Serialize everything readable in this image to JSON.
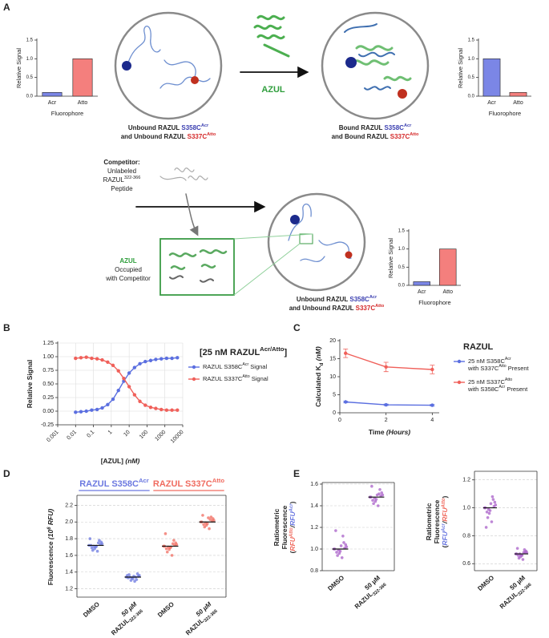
{
  "figure": {
    "panel_labels": [
      "A",
      "B",
      "C",
      "D",
      "E"
    ],
    "a_captions": [
      [
        [
          {
            "t": "Unbound RAZUL "
          },
          {
            "t": "S358C",
            "c": "#3b3fb0"
          },
          {
            "t": "Acr",
            "s": "sup",
            "c": "#3b3fb0"
          }
        ],
        [
          {
            "t": "and Unbound RAZUL "
          },
          {
            "t": "S337C",
            "c": "#d42a2a"
          },
          {
            "t": "Atto",
            "s": "sup",
            "c": "#d42a2a"
          }
        ]
      ],
      [
        [
          {
            "t": "Bound RAZUL "
          },
          {
            "t": "S358C",
            "c": "#3b3fb0"
          },
          {
            "t": "Acr",
            "s": "sup",
            "c": "#3b3fb0"
          }
        ],
        [
          {
            "t": "and Bound RAZUL "
          },
          {
            "t": "S337C",
            "c": "#d42a2a"
          },
          {
            "t": "Atto",
            "s": "sup",
            "c": "#d42a2a"
          }
        ]
      ],
      [
        [
          {
            "t": "Unbound RAZUL "
          },
          {
            "t": "S358C",
            "c": "#3b3fb0"
          },
          {
            "t": "Acr",
            "s": "sup",
            "c": "#3b3fb0"
          }
        ],
        [
          {
            "t": "and Unbound RAZUL "
          },
          {
            "t": "S337C",
            "c": "#d42a2a"
          },
          {
            "t": "Atto",
            "s": "sup",
            "c": "#d42a2a"
          }
        ]
      ]
    ],
    "azul_label": [
      {
        "t": "AZUL",
        "c": "#2f9e3c"
      }
    ],
    "competitor": [
      [
        {
          "t": "Competitor:",
          "b": true
        }
      ],
      [
        {
          "t": "Unlabeled"
        }
      ],
      [
        {
          "t": "RAZUL"
        },
        {
          "t": "322-366",
          "s": "sup"
        }
      ],
      [
        {
          "t": "Peptide"
        }
      ]
    ],
    "occupied": [
      [
        {
          "t": "AZUL",
          "c": "#2f9e3c",
          "b": true
        }
      ],
      [
        {
          "t": "Occupied"
        }
      ],
      [
        {
          "t": "with Competitor"
        }
      ]
    ]
  },
  "chart_data": [
    {
      "type": "bar",
      "ylabel": [
        {
          "t": "Relative Signal"
        }
      ],
      "xlabel": [
        {
          "t": "Fluorophore"
        }
      ],
      "categories": [
        "Acr",
        "Atto"
      ],
      "values": [
        0.1,
        1.0
      ],
      "colors": [
        "#7b86e6",
        "#f47f7d"
      ],
      "ylim": [
        0,
        1.5
      ],
      "yticks": [
        {
          "value": 0,
          "label": "0.0"
        },
        0.5,
        {
          "value": 1,
          "label": "1.0"
        },
        1.5
      ]
    },
    {
      "type": "bar",
      "ylabel": [
        {
          "t": "Relative Signal"
        }
      ],
      "xlabel": [
        {
          "t": "Fluorophore"
        }
      ],
      "categories": [
        "Acr",
        "Atto"
      ],
      "values": [
        1.0,
        0.1
      ],
      "colors": [
        "#7b86e6",
        "#f47f7d"
      ],
      "ylim": [
        0,
        1.5
      ],
      "yticks": [
        {
          "value": 0,
          "label": "0.0"
        },
        0.5,
        {
          "value": 1,
          "label": "1.0"
        },
        1.5
      ]
    },
    {
      "type": "bar",
      "ylabel": [
        {
          "t": "Relative Signal"
        }
      ],
      "xlabel": [
        {
          "t": "Fluorophore"
        }
      ],
      "categories": [
        "Acr",
        "Atto"
      ],
      "values": [
        0.1,
        1.0
      ],
      "colors": [
        "#7b86e6",
        "#f47f7d"
      ],
      "ylim": [
        0,
        1.5
      ],
      "yticks": [
        {
          "value": 0,
          "label": "0.0"
        },
        0.5,
        {
          "value": 1,
          "label": "1.0"
        },
        1.5
      ]
    },
    {
      "type": "line",
      "xscale": "log",
      "grid": "xy",
      "legend_title": [
        {
          "t": "[25 nM RAZUL"
        },
        {
          "t": "Acr/Atto",
          "s": "sup"
        },
        {
          "t": "]"
        }
      ],
      "ylabel": [
        {
          "t": "Relative Signal"
        }
      ],
      "xlabel": [
        {
          "t": "[AZUL] "
        },
        {
          "t": "(nM)",
          "i": true
        }
      ],
      "x": [
        0.01,
        0.02,
        0.04,
        0.08,
        0.16,
        0.31,
        0.63,
        1.25,
        2.5,
        5,
        10,
        20,
        40,
        80,
        160,
        310,
        630,
        1250,
        2500,
        5000
      ],
      "series": [
        {
          "name": [
            {
              "t": "RAZUL S358C"
            },
            {
              "t": "Acr",
              "s": "sup"
            },
            {
              "t": " Signal"
            }
          ],
          "color": "#5b6fe0",
          "values": [
            -0.02,
            -0.01,
            0.0,
            0.02,
            0.03,
            0.06,
            0.12,
            0.22,
            0.38,
            0.55,
            0.7,
            0.8,
            0.87,
            0.91,
            0.93,
            0.95,
            0.96,
            0.97,
            0.97,
            0.98
          ]
        },
        {
          "name": [
            {
              "t": "RAZUL S337C"
            },
            {
              "t": "Atto",
              "s": "sup"
            },
            {
              "t": " Signal"
            }
          ],
          "color": "#f0605a",
          "values": [
            0.97,
            0.98,
            0.99,
            0.97,
            0.96,
            0.94,
            0.9,
            0.84,
            0.74,
            0.6,
            0.45,
            0.3,
            0.18,
            0.11,
            0.07,
            0.05,
            0.03,
            0.02,
            0.02,
            0.02
          ]
        }
      ],
      "xlim": [
        0.001,
        10000
      ],
      "xticks": [
        0.001,
        0.01,
        0.1,
        1,
        10,
        100,
        1000,
        10000
      ],
      "ylim": [
        -0.25,
        1.25
      ],
      "yticks": [
        -0.25,
        {
          "value": 0,
          "label": "0.00"
        },
        0.25,
        {
          "value": 0.5,
          "label": "0.50"
        },
        0.75,
        {
          "value": 1,
          "label": "1.00"
        },
        1.25
      ]
    },
    {
      "type": "line",
      "legend_title": [
        {
          "t": "RAZUL"
        }
      ],
      "ylabel": [
        {
          "t": "Calculated K"
        },
        {
          "t": "d",
          "s": "sub"
        },
        {
          "t": " (nM)",
          "i": true
        }
      ],
      "xlabel": [
        {
          "t": "Time "
        },
        {
          "t": "(Hours)",
          "i": true
        }
      ],
      "x": [
        0.25,
        2,
        4
      ],
      "series": [
        {
          "name": [
            [
              {
                "t": "25 nM S358C"
              },
              {
                "t": "Acr",
                "s": "sup"
              }
            ],
            [
              {
                "t": "with S337C"
              },
              {
                "t": "Atto",
                "s": "sup"
              },
              {
                "t": " Present"
              }
            ]
          ],
          "color": "#5b6fe0",
          "values": [
            3.0,
            2.2,
            2.1
          ],
          "errors": [
            0.2,
            0.2,
            0.2
          ]
        },
        {
          "name": [
            [
              {
                "t": "25 nM S337C"
              },
              {
                "t": "Atto",
                "s": "sup"
              }
            ],
            [
              {
                "t": "with S358C"
              },
              {
                "t": "Acr",
                "s": "sup"
              },
              {
                "t": " Present"
              }
            ]
          ],
          "color": "#f0605a",
          "values": [
            16.5,
            12.7,
            12.0
          ],
          "errors": [
            1.2,
            1.3,
            1.2
          ]
        }
      ],
      "xlim": [
        0,
        4.3
      ],
      "xticks": [
        0,
        2,
        4
      ],
      "ylim": [
        0,
        20
      ],
      "yticks": [
        0,
        5,
        10,
        15,
        20
      ]
    },
    {
      "type": "swarm",
      "grid": "y",
      "ylabel": [
        {
          "t": "Fluorescence "
        },
        {
          "t": "(10",
          "i": true
        },
        {
          "t": "6",
          "s": "sup",
          "i": true
        },
        {
          "t": " RFU)",
          "i": true
        }
      ],
      "group_labels": [
        [
          {
            "t": "RAZUL S358C",
            "c": "#6b78e0"
          },
          {
            "t": "Acr",
            "s": "sup",
            "c": "#6b78e0"
          }
        ],
        [
          {
            "t": "RAZUL S337C",
            "c": "#f06b5f"
          },
          {
            "t": "Atto",
            "s": "sup",
            "c": "#f06b5f"
          }
        ]
      ],
      "categories": [
        [
          [
            {
              "t": "DMSO"
            }
          ]
        ],
        [
          [
            {
              "t": "50 µM",
              "i": true
            }
          ],
          [
            {
              "t": "RAZUL"
            },
            {
              "t": "322-366",
              "s": "sub"
            }
          ]
        ],
        [
          [
            {
              "t": "DMSO"
            }
          ]
        ],
        [
          [
            {
              "t": "50 µM",
              "i": true
            }
          ],
          [
            {
              "t": "RAZUL"
            },
            {
              "t": "322-366",
              "s": "sub"
            }
          ]
        ]
      ],
      "groups": [
        {
          "color": "#6b78e0",
          "median": 1.72,
          "points": [
            1.72,
            1.7,
            1.74,
            1.68,
            1.76,
            1.71,
            1.73,
            1.66,
            1.78,
            1.69,
            1.75,
            1.72,
            1.65,
            1.8,
            1.71
          ]
        },
        {
          "color": "#6b78e0",
          "median": 1.34,
          "points": [
            1.34,
            1.32,
            1.36,
            1.33,
            1.35,
            1.3,
            1.38,
            1.34,
            1.31,
            1.37,
            1.34,
            1.33,
            1.29,
            1.36,
            1.35
          ]
        },
        {
          "color": "#f06b5f",
          "median": 1.71,
          "points": [
            1.71,
            1.69,
            1.73,
            1.67,
            1.75,
            1.7,
            1.72,
            1.64,
            1.78,
            1.68,
            1.74,
            1.86,
            1.6,
            1.71,
            1.7
          ]
        },
        {
          "color": "#f06b5f",
          "median": 2.0,
          "points": [
            2.0,
            1.98,
            2.02,
            1.96,
            2.04,
            1.99,
            2.01,
            1.94,
            2.06,
            1.97,
            2.03,
            2.08,
            1.92,
            2.0,
            2.05
          ]
        }
      ],
      "ylim": [
        1.1,
        2.3
      ],
      "yticks": [
        1.2,
        1.4,
        1.6,
        1.8,
        {
          "value": 2,
          "label": "2.0"
        },
        2.2
      ]
    },
    {
      "type": "swarm",
      "grid": "y",
      "ylabel": [
        [
          {
            "t": "Ratiometric"
          }
        ],
        [
          {
            "t": "Fluorescence"
          }
        ],
        [
          {
            "t": "("
          },
          {
            "t": "RFU",
            "c": "#f06b5f",
            "i": true
          },
          {
            "t": "Atto",
            "s": "sup",
            "c": "#f06b5f",
            "i": true
          },
          {
            "t": "/",
            "i": true
          },
          {
            "t": "RFU",
            "c": "#6b78e0",
            "i": true
          },
          {
            "t": "Acr",
            "s": "sup",
            "c": "#6b78e0",
            "i": true
          },
          {
            "t": ")"
          }
        ]
      ],
      "categories": [
        [
          [
            {
              "t": "DMSO"
            }
          ]
        ],
        [
          [
            {
              "t": "50 µM"
            }
          ],
          [
            {
              "t": "RAZUL"
            },
            {
              "t": "322-366",
              "s": "sub"
            }
          ]
        ]
      ],
      "groups": [
        {
          "color": "#a85fc8",
          "median": 1.0,
          "points": [
            1.0,
            0.98,
            1.02,
            0.96,
            1.04,
            0.99,
            1.01,
            0.94,
            1.06,
            0.97,
            1.12,
            1.17,
            0.92,
            1.0,
            1.03
          ]
        },
        {
          "color": "#a85fc8",
          "median": 1.48,
          "points": [
            1.48,
            1.46,
            1.5,
            1.44,
            1.52,
            1.47,
            1.49,
            1.42,
            1.55,
            1.45,
            1.51,
            1.58,
            1.4,
            1.48,
            1.5
          ]
        }
      ],
      "ylim": [
        0.8,
        1.6
      ],
      "yticks": [
        0.8,
        {
          "value": 1,
          "label": "1.0"
        },
        1.2,
        1.4,
        1.6
      ]
    },
    {
      "type": "swarm",
      "grid": "y",
      "ylabel": [
        [
          {
            "t": "Ratiometric"
          }
        ],
        [
          {
            "t": "Fluorescence"
          }
        ],
        [
          {
            "t": "("
          },
          {
            "t": "RFU",
            "c": "#6b78e0",
            "i": true
          },
          {
            "t": "Acr",
            "s": "sup",
            "c": "#6b78e0",
            "i": true
          },
          {
            "t": "/",
            "i": true
          },
          {
            "t": "RFU",
            "c": "#f06b5f",
            "i": true
          },
          {
            "t": "Atto",
            "s": "sup",
            "c": "#f06b5f",
            "i": true
          },
          {
            "t": ")"
          }
        ]
      ],
      "categories": [
        [
          [
            {
              "t": "DMSO"
            }
          ]
        ],
        [
          [
            {
              "t": "50 µM"
            }
          ],
          [
            {
              "t": "RAZUL"
            },
            {
              "t": "322-366",
              "s": "sub"
            }
          ]
        ]
      ],
      "groups": [
        {
          "color": "#a85fc8",
          "median": 1.0,
          "points": [
            1.0,
            0.98,
            1.02,
            0.96,
            1.04,
            0.99,
            1.01,
            0.93,
            1.06,
            0.97,
            1.08,
            0.86,
            0.9,
            1.0,
            1.03
          ]
        },
        {
          "color": "#a85fc8",
          "median": 0.67,
          "points": [
            0.67,
            0.66,
            0.68,
            0.65,
            0.69,
            0.67,
            0.68,
            0.64,
            0.7,
            0.66,
            0.68,
            0.71,
            0.63,
            0.67,
            0.66
          ]
        }
      ],
      "ylim": [
        0.55,
        1.25
      ],
      "yticks": [
        0.6,
        0.8,
        {
          "value": 1,
          "label": "1.0"
        },
        1.2
      ]
    }
  ]
}
